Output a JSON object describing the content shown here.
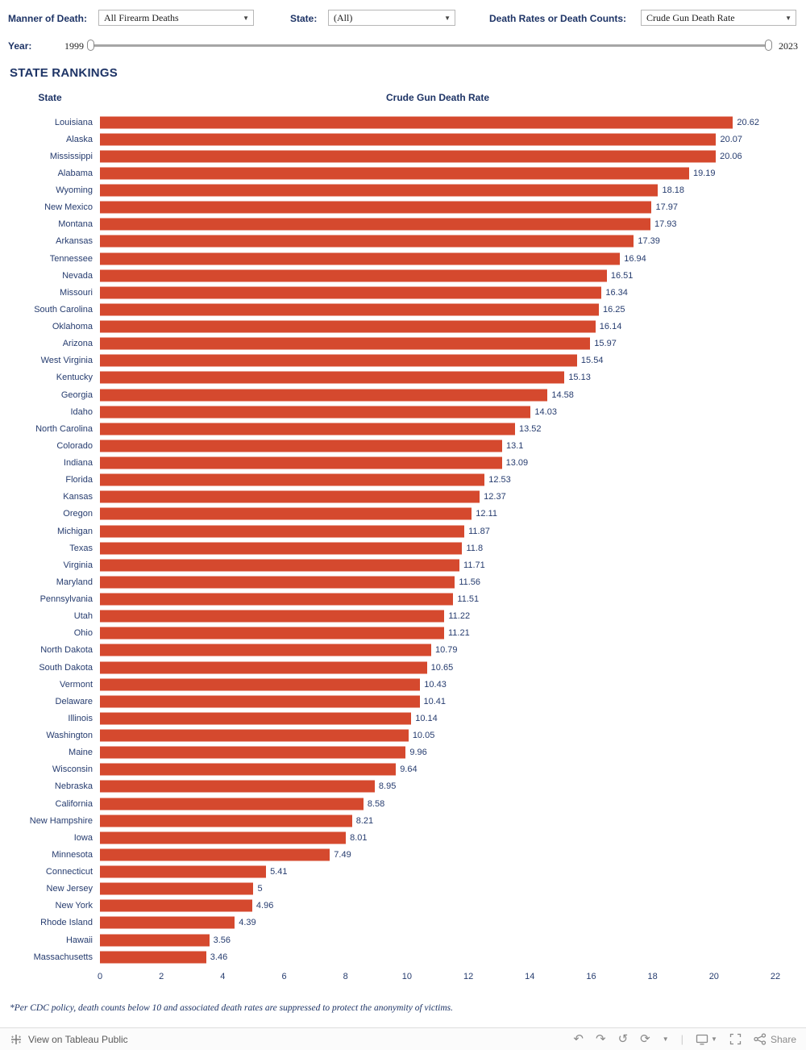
{
  "filters": {
    "manner_label": "Manner of Death:",
    "manner_value": "All Firearm Deaths",
    "state_label": "State:",
    "state_value": "(All)",
    "measure_label": "Death Rates or Death Counts:",
    "measure_value": "Crude Gun Death Rate"
  },
  "year_slider": {
    "label": "Year:",
    "min": "1999",
    "max": "2023"
  },
  "title": "STATE RANKINGS",
  "chart_data": {
    "type": "bar",
    "orientation": "horizontal",
    "title": "STATE RANKINGS",
    "column_headers": {
      "state": "State",
      "value": "Crude Gun Death Rate"
    },
    "categories": [
      "Louisiana",
      "Alaska",
      "Mississippi",
      "Alabama",
      "Wyoming",
      "New Mexico",
      "Montana",
      "Arkansas",
      "Tennessee",
      "Nevada",
      "Missouri",
      "South Carolina",
      "Oklahoma",
      "Arizona",
      "West Virginia",
      "Kentucky",
      "Georgia",
      "Idaho",
      "North Carolina",
      "Colorado",
      "Indiana",
      "Florida",
      "Kansas",
      "Oregon",
      "Michigan",
      "Texas",
      "Virginia",
      "Maryland",
      "Pennsylvania",
      "Utah",
      "Ohio",
      "North Dakota",
      "South Dakota",
      "Vermont",
      "Delaware",
      "Illinois",
      "Washington",
      "Maine",
      "Wisconsin",
      "Nebraska",
      "California",
      "New Hampshire",
      "Iowa",
      "Minnesota",
      "Connecticut",
      "New Jersey",
      "New York",
      "Rhode Island",
      "Hawaii",
      "Massachusetts"
    ],
    "values": [
      20.62,
      20.07,
      20.06,
      19.19,
      18.18,
      17.97,
      17.93,
      17.39,
      16.94,
      16.51,
      16.34,
      16.25,
      16.14,
      15.97,
      15.54,
      15.13,
      14.58,
      14.03,
      13.52,
      13.1,
      13.09,
      12.53,
      12.37,
      12.11,
      11.87,
      11.8,
      11.71,
      11.56,
      11.51,
      11.22,
      11.21,
      10.79,
      10.65,
      10.43,
      10.41,
      10.14,
      10.05,
      9.96,
      9.64,
      8.95,
      8.58,
      8.21,
      8.01,
      7.49,
      5.41,
      5,
      4.96,
      4.39,
      3.56,
      3.46
    ],
    "value_labels": [
      "20.62",
      "20.07",
      "20.06",
      "19.19",
      "18.18",
      "17.97",
      "17.93",
      "17.39",
      "16.94",
      "16.51",
      "16.34",
      "16.25",
      "16.14",
      "15.97",
      "15.54",
      "15.13",
      "14.58",
      "14.03",
      "13.52",
      "13.1",
      "13.09",
      "12.53",
      "12.37",
      "12.11",
      "11.87",
      "11.8",
      "11.71",
      "11.56",
      "11.51",
      "11.22",
      "11.21",
      "10.79",
      "10.65",
      "10.43",
      "10.41",
      "10.14",
      "10.05",
      "9.96",
      "9.64",
      "8.95",
      "8.58",
      "8.21",
      "8.01",
      "7.49",
      "5.41",
      "5",
      "4.96",
      "4.39",
      "3.56",
      "3.46"
    ],
    "xlim": [
      0,
      22
    ],
    "x_ticks": [
      0,
      2,
      4,
      6,
      8,
      10,
      12,
      14,
      16,
      18,
      20,
      22
    ],
    "grid": false,
    "legend": "none",
    "bar_color": "#d5492e",
    "text_color": "#263c6f"
  },
  "footnote": "*Per CDC policy, death counts below 10 and associated death rates are suppressed to protect the anonymity of victims.",
  "toolbar": {
    "view_label": "View on Tableau Public",
    "share_label": "Share"
  }
}
